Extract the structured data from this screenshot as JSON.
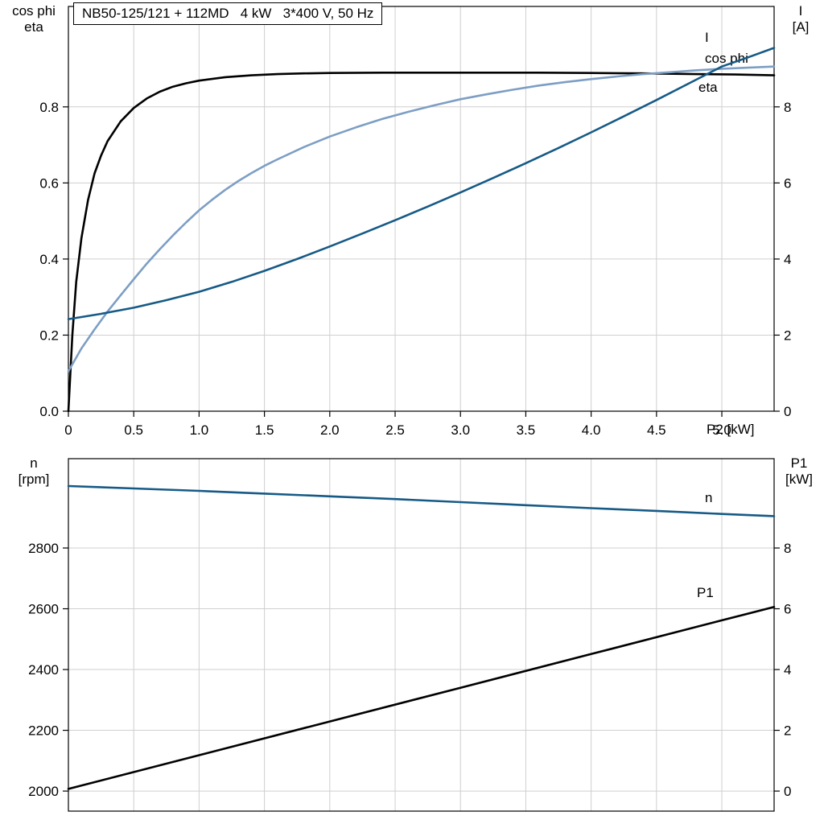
{
  "chart_data": [
    {
      "type": "line",
      "title": "NB50-125/121 + 112MD   4 kW   3*400 V, 50 Hz",
      "xlabel": "P2 [kW]",
      "xlim": [
        0,
        5.4
      ],
      "x_ticks": [
        0,
        0.5,
        1,
        1.5,
        2,
        2.5,
        3,
        3.5,
        4,
        4.5,
        5
      ],
      "x_tick_labels": [
        "0",
        "0.5",
        "1.0",
        "1.5",
        "2.0",
        "2.5",
        "3.0",
        "3.5",
        "4.0",
        "4.5",
        "5.0"
      ],
      "grid": true,
      "left_axis": {
        "title_lines": [
          "cos phi",
          "eta"
        ],
        "lim": [
          0,
          1.064
        ],
        "ticks": [
          0,
          0.2,
          0.4,
          0.6,
          0.8
        ],
        "tick_labels": [
          "0.0",
          "0.2",
          "0.4",
          "0.6",
          "0.8"
        ]
      },
      "right_axis": {
        "title_lines": [
          "I",
          "[A]"
        ],
        "lim": [
          0,
          10.64
        ],
        "ticks": [
          0,
          2,
          4,
          6,
          8
        ],
        "tick_labels": [
          "0",
          "2",
          "4",
          "6",
          "8"
        ]
      },
      "series": [
        {
          "name": "eta",
          "axis": "left",
          "color": "#000000",
          "points": [
            [
              0,
              0
            ],
            [
              0.03,
              0.2
            ],
            [
              0.06,
              0.34
            ],
            [
              0.1,
              0.455
            ],
            [
              0.15,
              0.555
            ],
            [
              0.2,
              0.625
            ],
            [
              0.25,
              0.672
            ],
            [
              0.3,
              0.71
            ],
            [
              0.4,
              0.762
            ],
            [
              0.5,
              0.797
            ],
            [
              0.6,
              0.822
            ],
            [
              0.7,
              0.84
            ],
            [
              0.8,
              0.853
            ],
            [
              0.9,
              0.862
            ],
            [
              1.0,
              0.869
            ],
            [
              1.2,
              0.878
            ],
            [
              1.4,
              0.883
            ],
            [
              1.6,
              0.886
            ],
            [
              1.8,
              0.888
            ],
            [
              2.0,
              0.889
            ],
            [
              2.4,
              0.89
            ],
            [
              2.8,
              0.89
            ],
            [
              3.2,
              0.89
            ],
            [
              3.6,
              0.89
            ],
            [
              4.0,
              0.889
            ],
            [
              4.4,
              0.888
            ],
            [
              4.8,
              0.886
            ],
            [
              5.1,
              0.885
            ],
            [
              5.4,
              0.883
            ]
          ]
        },
        {
          "name": "cos phi",
          "axis": "left",
          "color": "#7d9ec4",
          "points": [
            [
              0,
              0.105
            ],
            [
              0.1,
              0.165
            ],
            [
              0.2,
              0.215
            ],
            [
              0.3,
              0.262
            ],
            [
              0.4,
              0.305
            ],
            [
              0.5,
              0.347
            ],
            [
              0.6,
              0.388
            ],
            [
              0.7,
              0.426
            ],
            [
              0.8,
              0.462
            ],
            [
              0.9,
              0.496
            ],
            [
              1.0,
              0.528
            ],
            [
              1.1,
              0.556
            ],
            [
              1.2,
              0.582
            ],
            [
              1.3,
              0.605
            ],
            [
              1.4,
              0.626
            ],
            [
              1.5,
              0.645
            ],
            [
              1.6,
              0.662
            ],
            [
              1.8,
              0.694
            ],
            [
              2.0,
              0.722
            ],
            [
              2.2,
              0.746
            ],
            [
              2.4,
              0.768
            ],
            [
              2.6,
              0.787
            ],
            [
              2.8,
              0.804
            ],
            [
              3.0,
              0.82
            ],
            [
              3.2,
              0.833
            ],
            [
              3.4,
              0.845
            ],
            [
              3.6,
              0.856
            ],
            [
              3.8,
              0.865
            ],
            [
              4.0,
              0.873
            ],
            [
              4.2,
              0.88
            ],
            [
              4.4,
              0.886
            ],
            [
              4.6,
              0.891
            ],
            [
              4.8,
              0.896
            ],
            [
              5.0,
              0.9
            ],
            [
              5.2,
              0.903
            ],
            [
              5.4,
              0.906
            ]
          ]
        },
        {
          "name": "I",
          "axis": "right",
          "color": "#165a86",
          "points": [
            [
              0,
              2.42
            ],
            [
              0.25,
              2.56
            ],
            [
              0.5,
              2.72
            ],
            [
              0.75,
              2.92
            ],
            [
              1.0,
              3.14
            ],
            [
              1.25,
              3.4
            ],
            [
              1.5,
              3.69
            ],
            [
              1.75,
              4.0
            ],
            [
              2.0,
              4.33
            ],
            [
              2.25,
              4.67
            ],
            [
              2.5,
              5.02
            ],
            [
              2.75,
              5.38
            ],
            [
              3.0,
              5.75
            ],
            [
              3.25,
              6.13
            ],
            [
              3.5,
              6.52
            ],
            [
              3.75,
              6.92
            ],
            [
              4.0,
              7.33
            ],
            [
              4.25,
              7.75
            ],
            [
              4.5,
              8.18
            ],
            [
              4.75,
              8.62
            ],
            [
              5.0,
              9.06
            ],
            [
              5.2,
              9.3
            ],
            [
              5.4,
              9.55
            ]
          ]
        }
      ]
    },
    {
      "type": "line",
      "title": "",
      "xlabel": "",
      "xlim": [
        0,
        5.4
      ],
      "x_ticks": [
        0,
        0.5,
        1,
        1.5,
        2,
        2.5,
        3,
        3.5,
        4,
        4.5,
        5
      ],
      "x_tick_labels": [],
      "grid": true,
      "left_axis": {
        "title_lines": [
          "n",
          "[rpm]"
        ],
        "lim": [
          1934,
          3094
        ],
        "ticks": [
          2000,
          2200,
          2400,
          2600,
          2800
        ],
        "tick_labels": [
          "2000",
          "2200",
          "2400",
          "2600",
          "2800"
        ]
      },
      "right_axis": {
        "title_lines": [
          "P1",
          "[kW]"
        ],
        "lim": [
          -0.66,
          10.94
        ],
        "ticks": [
          0,
          2,
          4,
          6,
          8
        ],
        "tick_labels": [
          "0",
          "2",
          "4",
          "6",
          "8"
        ]
      },
      "series": [
        {
          "name": "n",
          "axis": "left",
          "color": "#165a86",
          "points": [
            [
              0,
              3004
            ],
            [
              0.5,
              2996
            ],
            [
              1.0,
              2988
            ],
            [
              1.5,
              2979
            ],
            [
              2.0,
              2970
            ],
            [
              2.5,
              2961
            ],
            [
              3.0,
              2951
            ],
            [
              3.5,
              2941
            ],
            [
              4.0,
              2931
            ],
            [
              4.5,
              2922
            ],
            [
              5.0,
              2912
            ],
            [
              5.4,
              2905
            ]
          ]
        },
        {
          "name": "P1",
          "axis": "right",
          "color": "#000000",
          "points": [
            [
              0,
              0.07
            ],
            [
              1,
              1.18
            ],
            [
              2,
              2.29
            ],
            [
              3,
              3.4
            ],
            [
              4,
              4.51
            ],
            [
              5,
              5.62
            ],
            [
              5.4,
              6.06
            ]
          ]
        }
      ]
    }
  ],
  "colors": {
    "grid": "#cfcfcf",
    "frame": "#000000",
    "dark_blue": "#165a86",
    "light_blue": "#7d9ec4"
  }
}
